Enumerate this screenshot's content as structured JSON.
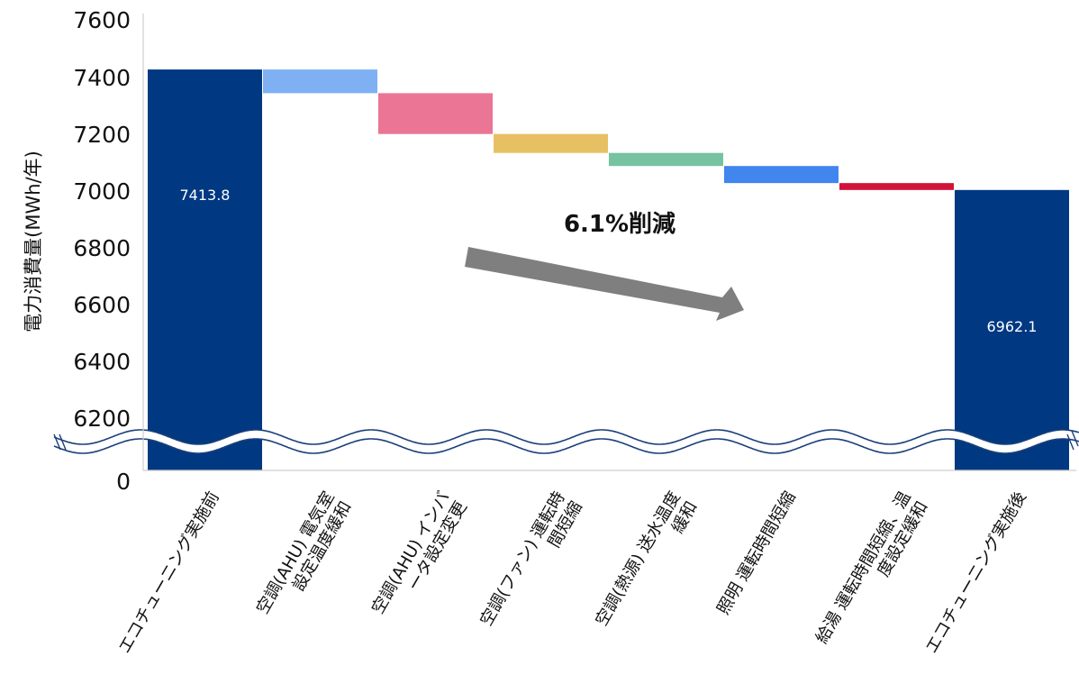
{
  "chart_data": {
    "type": "waterfall",
    "ylabel": "電力消費量(MWh/年)",
    "yticks": [
      "7600",
      "7400",
      "7200",
      "7000",
      "6800",
      "6600",
      "6400",
      "6200",
      "0"
    ],
    "ylim": [
      6100,
      7600
    ],
    "axis_break": true,
    "annotation": "6.1%削減",
    "bars": [
      {
        "label": "エコチューニング実施前",
        "kind": "total",
        "value": 7413.8,
        "data_label": "7413.8",
        "color": "#003882"
      },
      {
        "label": "空調(AHU) 電気室設定温度緩和",
        "kind": "delta",
        "start": 7413.8,
        "end": 7325,
        "color": "#7fb0f4"
      },
      {
        "label": "空調(AHU) インバータ設定変更",
        "kind": "delta",
        "start": 7325,
        "end": 7172,
        "color": "#ea7595"
      },
      {
        "label": "空調(ファン) 運転時間短縮",
        "kind": "delta",
        "start": 7172,
        "end": 7101,
        "color": "#e6c063"
      },
      {
        "label": "空調(熱源) 送水温度緩和",
        "kind": "delta",
        "start": 7101,
        "end": 7052,
        "color": "#77c2a0"
      },
      {
        "label": "照明 運転時間短縮",
        "kind": "delta",
        "start": 7052,
        "end": 6988,
        "color": "#4185ee"
      },
      {
        "label": "給湯 運転時間短縮、温度設定緩和",
        "kind": "delta",
        "start": 6988,
        "end": 6962.1,
        "color": "#d2113b"
      },
      {
        "label": "エコチューニング実施後",
        "kind": "total",
        "value": 6962.1,
        "data_label": "6962.1",
        "color": "#003882"
      }
    ]
  }
}
